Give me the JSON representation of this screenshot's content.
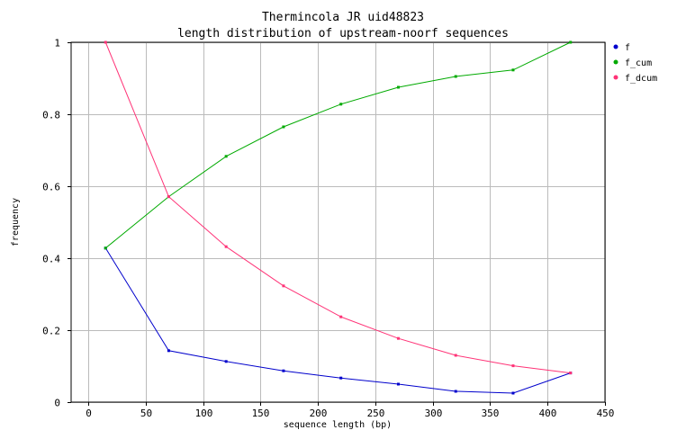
{
  "chart_data": {
    "type": "line",
    "title": "Thermincola JR uid48823",
    "subtitle": "length distribution of upstream-noorf sequences",
    "xlabel": "sequence length (bp)",
    "ylabel": "frequency",
    "xlim": [
      -15,
      450
    ],
    "ylim": [
      0,
      1
    ],
    "xticks": [
      0,
      50,
      100,
      150,
      200,
      250,
      300,
      350,
      400,
      450
    ],
    "yticks": [
      0,
      0.2,
      0.4,
      0.6,
      0.8,
      1
    ],
    "ytick_labels": [
      "0",
      "0.2",
      "0.4",
      "0.6",
      "0.8",
      "1"
    ],
    "grid": true,
    "legend_position": "top-right",
    "x": [
      15,
      70,
      120,
      170,
      220,
      270,
      320,
      370,
      420
    ],
    "series": [
      {
        "name": "f",
        "color": "#0000cc",
        "values": [
          0.428,
          0.143,
          0.113,
          0.087,
          0.067,
          0.05,
          0.03,
          0.025,
          0.081
        ]
      },
      {
        "name": "f_cum",
        "color": "#00aa00",
        "values": [
          0.428,
          0.571,
          0.683,
          0.765,
          0.828,
          0.875,
          0.905,
          0.923,
          1.0
        ]
      },
      {
        "name": "f_dcum",
        "color": "#ff3377",
        "values": [
          1.0,
          0.571,
          0.432,
          0.323,
          0.237,
          0.177,
          0.13,
          0.101,
          0.081
        ]
      }
    ]
  }
}
